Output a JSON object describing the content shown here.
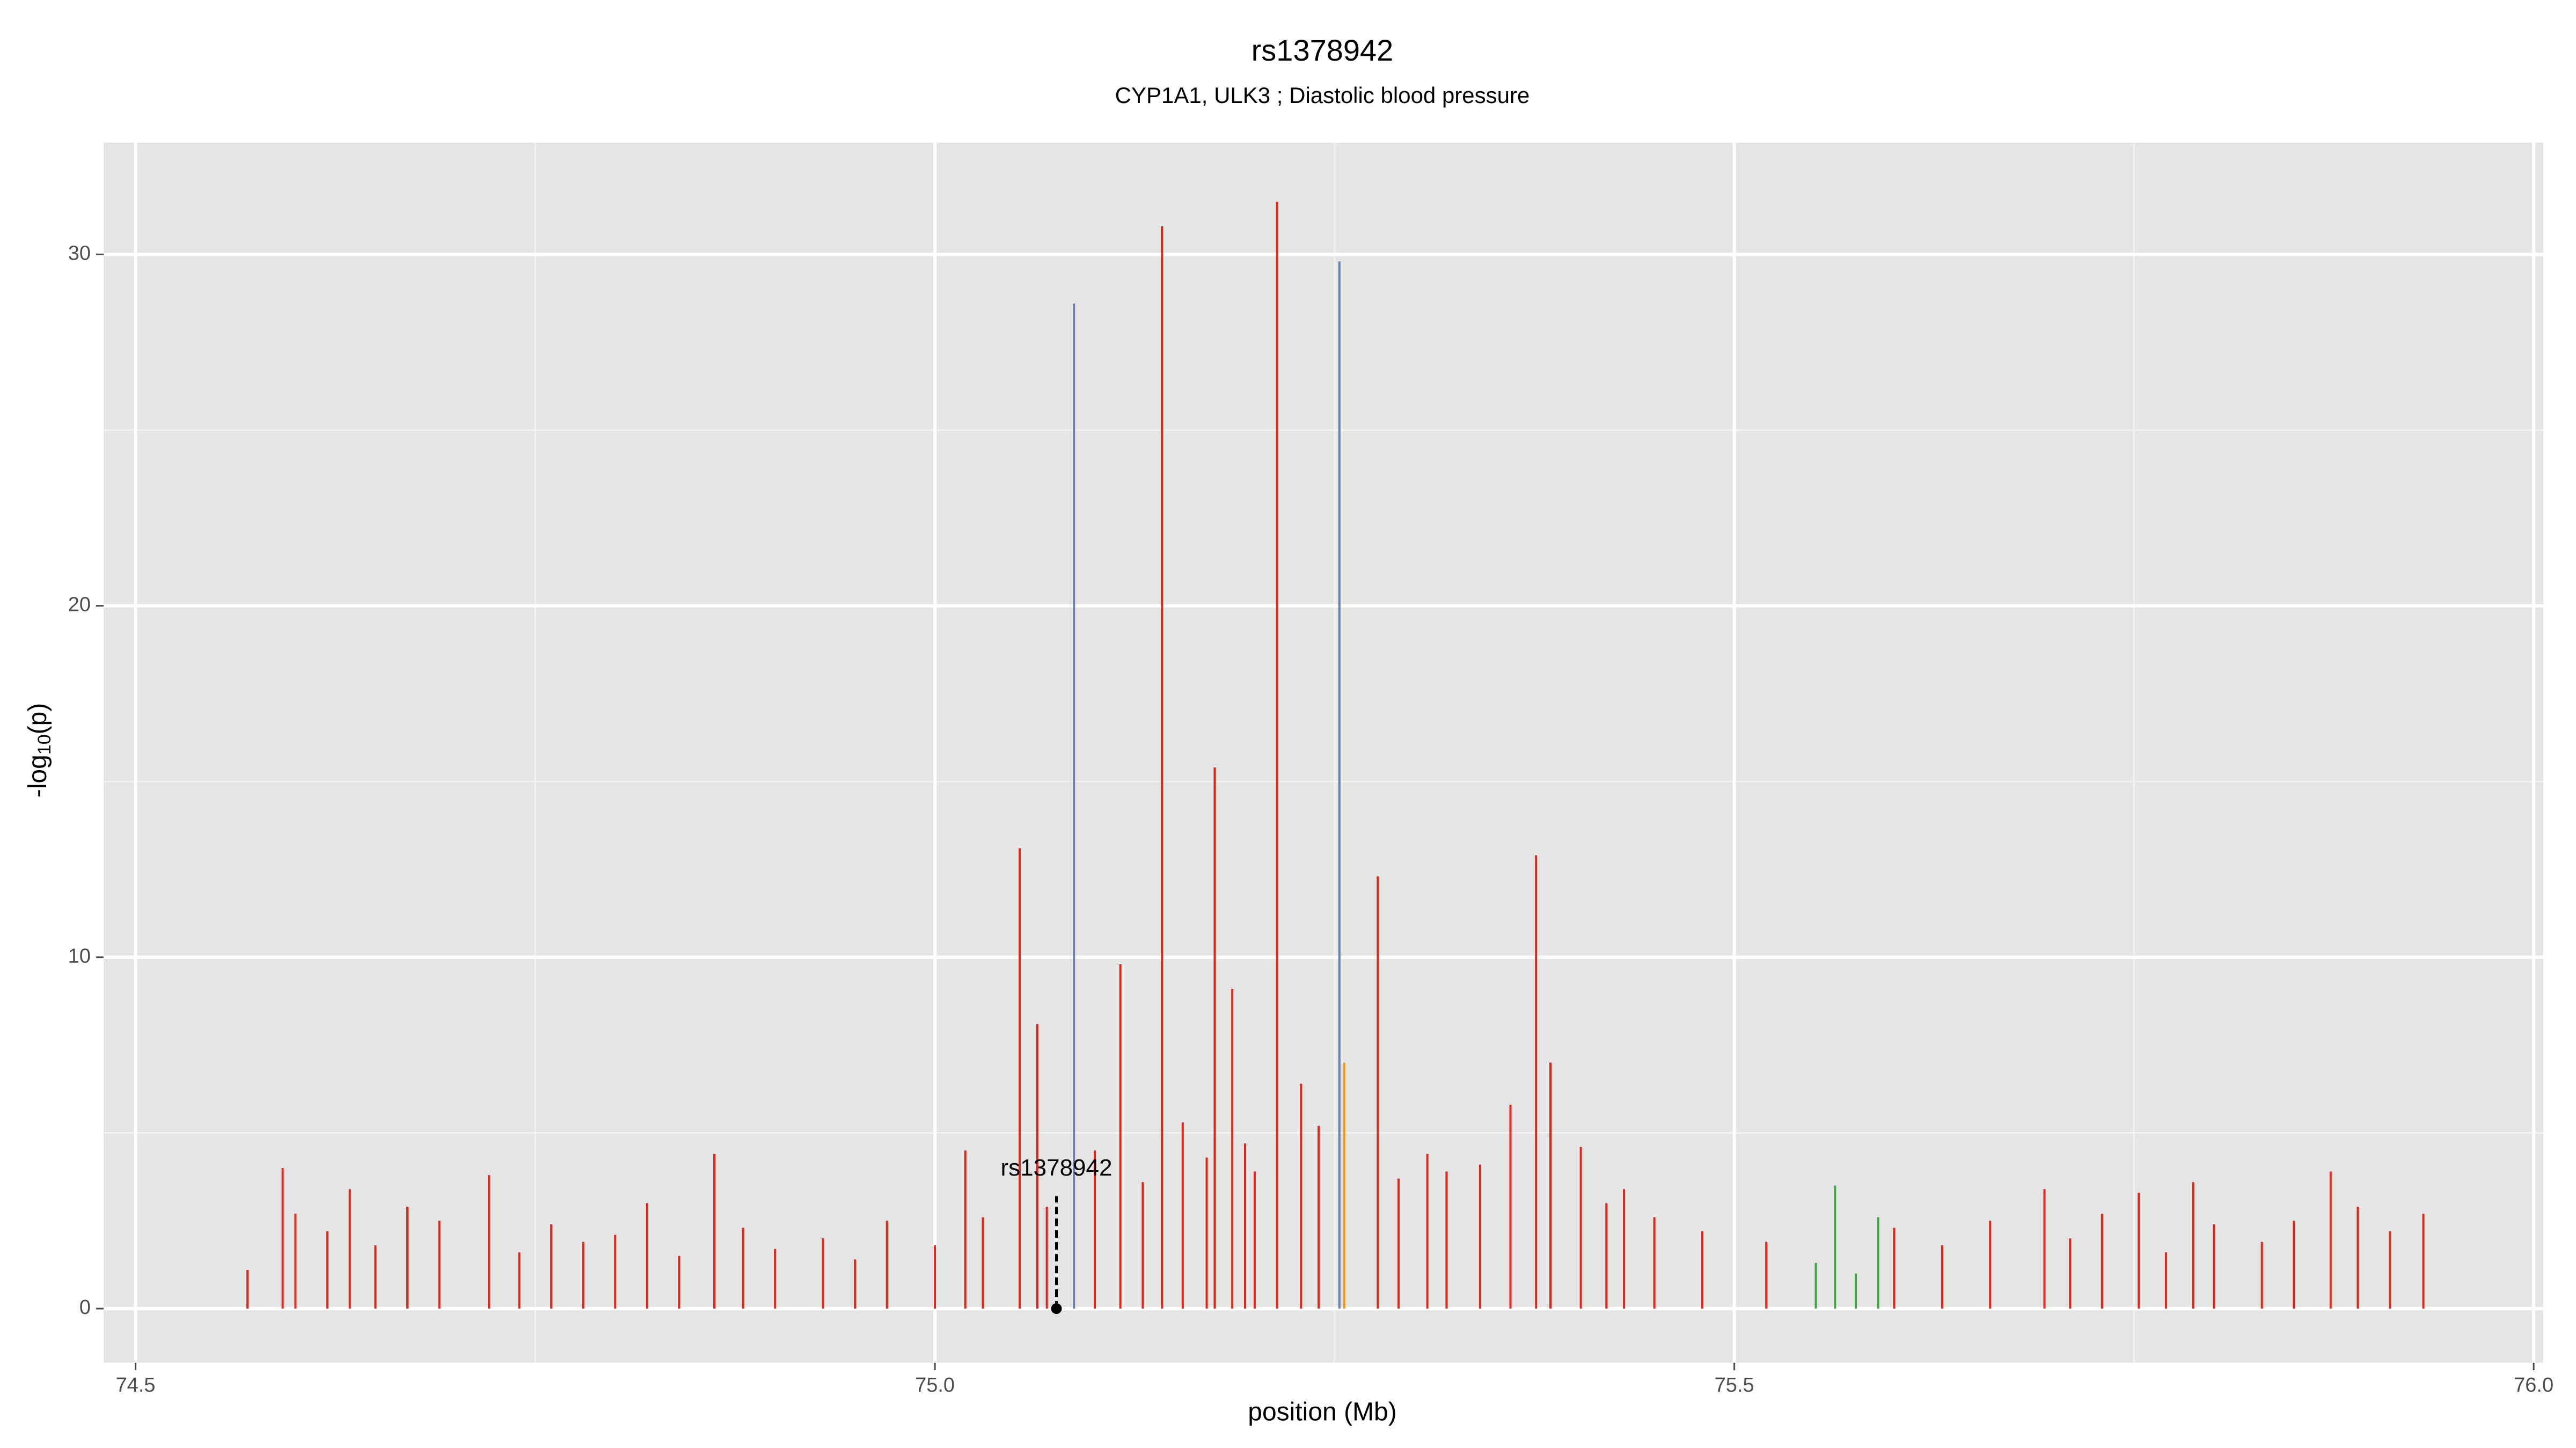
{
  "chart_data": {
    "type": "spike",
    "title": "rs1378942",
    "subtitle": "CYP1A1, ULK3 ; Diastolic blood pressure",
    "xlabel": "position (Mb)",
    "ylabel": {
      "prefix": "-log",
      "sub": "10",
      "suffix": "(p)"
    },
    "xlim": [
      74.48,
      76.006
    ],
    "ylim": [
      -1.54,
      33.18
    ],
    "xticks": [
      74.5,
      {
        "value": 75,
        "label": "75.0"
      },
      75.5,
      {
        "value": 76,
        "label": "76.0"
      }
    ],
    "yticks": [
      0,
      10,
      20,
      30
    ],
    "x_minor_grid": [
      74.75,
      75.25,
      75.75
    ],
    "y_minor_grid": [
      5,
      15,
      25
    ],
    "grid": true,
    "series": [
      {
        "color": "#e8231a",
        "x": [
          74.57,
          74.592,
          74.6,
          74.62,
          74.634,
          74.65,
          74.67,
          74.69,
          74.721,
          74.74,
          74.76,
          74.78,
          74.8,
          74.82,
          74.84,
          74.862,
          74.88,
          74.9,
          74.93,
          74.95,
          74.97,
          75.0,
          75.019,
          75.03,
          75.053,
          75.064,
          75.07,
          75.1,
          75.116,
          75.13,
          75.142,
          75.155,
          75.17,
          75.175,
          75.186,
          75.194,
          75.2,
          75.214,
          75.229,
          75.24,
          75.277,
          75.29,
          75.308,
          75.32,
          75.341,
          75.36,
          75.376,
          75.385,
          75.404,
          75.42,
          75.431,
          75.45,
          75.48,
          75.52,
          75.6,
          75.63,
          75.66,
          75.694,
          75.71,
          75.73,
          75.753,
          75.77,
          75.787,
          75.8,
          75.83,
          75.85,
          75.873,
          75.89,
          75.91,
          75.931
        ],
        "values": [
          1.1,
          4.0,
          2.7,
          2.2,
          3.4,
          1.8,
          2.9,
          2.5,
          3.8,
          1.6,
          2.4,
          1.9,
          2.1,
          3.0,
          1.5,
          4.4,
          2.3,
          1.7,
          2.0,
          1.4,
          2.5,
          1.8,
          4.5,
          2.6,
          13.1,
          8.1,
          2.9,
          4.5,
          9.8,
          3.6,
          30.8,
          5.3,
          4.3,
          15.4,
          9.1,
          4.7,
          3.9,
          31.5,
          6.4,
          5.2,
          12.3,
          3.7,
          4.4,
          3.9,
          4.1,
          5.8,
          12.9,
          7.0,
          4.6,
          3.0,
          3.4,
          2.6,
          2.2,
          1.9,
          2.3,
          1.8,
          2.5,
          3.4,
          2.0,
          2.7,
          3.3,
          1.6,
          3.6,
          2.4,
          1.9,
          2.5,
          3.9,
          2.9,
          2.2,
          2.7
        ]
      },
      {
        "color": "#6a7fb0",
        "x": [
          75.087,
          75.253
        ],
        "values": [
          28.6,
          29.8
        ]
      },
      {
        "color": "#f39c12",
        "x": [
          75.256
        ],
        "values": [
          7.0
        ]
      },
      {
        "color": "#3aa83a",
        "x": [
          75.551,
          75.563,
          75.576,
          75.59
        ],
        "values": [
          1.3,
          3.5,
          1.0,
          2.6
        ]
      }
    ],
    "annotation": {
      "text": "rs1378942",
      "x": 75.076,
      "y": 3.2
    }
  }
}
